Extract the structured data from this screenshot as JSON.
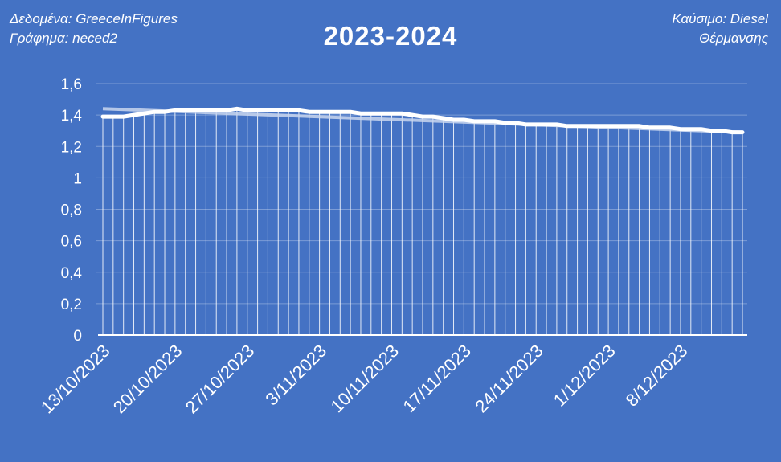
{
  "header": {
    "source_label": "Δεδομένα: GreeceInFigures",
    "chart_label": "Γράφημα: neced2",
    "fuel_label": "Καύσιμο: Diesel",
    "fuel_type": "Θέρμανσης"
  },
  "colors": {
    "background": "#4472c4",
    "series": "#ffffff",
    "trend": "#c9d6ee"
  },
  "chart_data": {
    "type": "line",
    "title": "2023-2024",
    "xlabel": "",
    "ylabel": "",
    "ylim": [
      0,
      1.6
    ],
    "yticks": [
      "0",
      "0,2",
      "0,4",
      "0,6",
      "0,8",
      "1",
      "1,2",
      "1,4",
      "1,6"
    ],
    "xtick_labels": [
      "13/10/2023",
      "20/10/2023",
      "27/10/2023",
      "3/11/2023",
      "10/11/2023",
      "17/11/2023",
      "24/11/2023",
      "1/12/2023",
      "8/12/2023"
    ],
    "x_range_days": [
      0,
      62
    ],
    "grid": "horizontal",
    "drop_lines": true,
    "trendline": {
      "start": 1.44,
      "end": 1.29
    },
    "series": [
      {
        "x": [
          0,
          1,
          2,
          3,
          4,
          5,
          6,
          7,
          8,
          9,
          10,
          11,
          12,
          13,
          14,
          15,
          16,
          17,
          18,
          19,
          20,
          21,
          22,
          23,
          24,
          25,
          26,
          27,
          28,
          29,
          30,
          31,
          32,
          33,
          34,
          35,
          36,
          37,
          38,
          39,
          40,
          41,
          42,
          43,
          44,
          45,
          46,
          47,
          48,
          49,
          50,
          51,
          52,
          53,
          54,
          55,
          56,
          57,
          58,
          59,
          60,
          61,
          62
        ],
        "y": [
          1.39,
          1.39,
          1.39,
          1.4,
          1.41,
          1.42,
          1.42,
          1.43,
          1.43,
          1.43,
          1.43,
          1.43,
          1.43,
          1.44,
          1.43,
          1.43,
          1.43,
          1.43,
          1.43,
          1.43,
          1.42,
          1.42,
          1.42,
          1.42,
          1.42,
          1.41,
          1.41,
          1.41,
          1.41,
          1.41,
          1.4,
          1.39,
          1.39,
          1.38,
          1.37,
          1.37,
          1.36,
          1.36,
          1.36,
          1.35,
          1.35,
          1.34,
          1.34,
          1.34,
          1.34,
          1.33,
          1.33,
          1.33,
          1.33,
          1.33,
          1.33,
          1.33,
          1.33,
          1.32,
          1.32,
          1.32,
          1.31,
          1.31,
          1.31,
          1.3,
          1.3,
          1.29,
          1.29
        ]
      }
    ]
  }
}
